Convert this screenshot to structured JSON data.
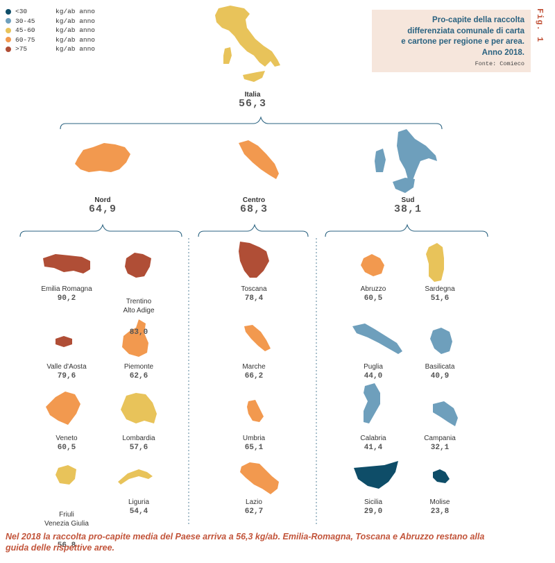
{
  "figure_label": "Fig. 1",
  "title": "Pro-capite della raccolta\ndifferenziata comunale di carta\ne cartone per regione e per area.\nAnno 2018.",
  "source": "Fonte: Comieco",
  "caption": "Nel 2018 la raccolta pro-capite media del Paese arriva a 56,3 kg/ab. Emilia-Romagna, Toscana e Abruzzo restano alla guida delle rispettive aree.",
  "colors": {
    "lt30": "#0e4d68",
    "r30_45": "#6e9fbc",
    "r45_60": "#e8c35a",
    "r60_75": "#f2994f",
    "gt75": "#b04e36",
    "line": "#2a6280"
  },
  "legend": [
    {
      "range": "<30",
      "unit": "kg/ab anno",
      "color": "#0e4d68"
    },
    {
      "range": "30-45",
      "unit": "kg/ab anno",
      "color": "#6e9fbc"
    },
    {
      "range": "45-60",
      "unit": "kg/ab anno",
      "color": "#e8c35a"
    },
    {
      "range": "60-75",
      "unit": "kg/ab anno",
      "color": "#f2994f"
    },
    {
      "range": ">75",
      "unit": "kg/ab anno",
      "color": "#b04e36"
    }
  ],
  "italia": {
    "name": "Italia",
    "value": "56,3",
    "color": "#e8c35a"
  },
  "areas": [
    {
      "name": "Nord",
      "value": "64,9",
      "color": "#f2994f"
    },
    {
      "name": "Centro",
      "value": "68,3",
      "color": "#f2994f"
    },
    {
      "name": "Sud",
      "value": "38,1",
      "color": "#6e9fbc"
    }
  ],
  "regions": [
    {
      "name": "Emilia Romagna",
      "value": "90,2",
      "color": "#b04e36"
    },
    {
      "name": "Trentino\nAlto Adige",
      "value": "83,0",
      "color": "#b04e36"
    },
    {
      "name": "Valle d'Aosta",
      "value": "79,6",
      "color": "#b04e36"
    },
    {
      "name": "Piemonte",
      "value": "62,6",
      "color": "#f2994f"
    },
    {
      "name": "Veneto",
      "value": "60,5",
      "color": "#f2994f"
    },
    {
      "name": "Lombardia",
      "value": "57,6",
      "color": "#e8c35a"
    },
    {
      "name": "Friuli\nVenezia Giulia",
      "value": "56,8",
      "color": "#e8c35a"
    },
    {
      "name": "Liguria",
      "value": "54,4",
      "color": "#e8c35a"
    },
    {
      "name": "Toscana",
      "value": "78,4",
      "color": "#b04e36"
    },
    {
      "name": "Marche",
      "value": "66,2",
      "color": "#f2994f"
    },
    {
      "name": "Umbria",
      "value": "65,1",
      "color": "#f2994f"
    },
    {
      "name": "Lazio",
      "value": "62,7",
      "color": "#f2994f"
    },
    {
      "name": "Abruzzo",
      "value": "60,5",
      "color": "#f2994f"
    },
    {
      "name": "Sardegna",
      "value": "51,6",
      "color": "#e8c35a"
    },
    {
      "name": "Puglia",
      "value": "44,0",
      "color": "#6e9fbc"
    },
    {
      "name": "Basilicata",
      "value": "40,9",
      "color": "#6e9fbc"
    },
    {
      "name": "Calabria",
      "value": "41,4",
      "color": "#6e9fbc"
    },
    {
      "name": "Campania",
      "value": "32,1",
      "color": "#6e9fbc"
    },
    {
      "name": "Sicilia",
      "value": "29,0",
      "color": "#0e4d68"
    },
    {
      "name": "Molise",
      "value": "23,8",
      "color": "#0e4d68"
    }
  ]
}
